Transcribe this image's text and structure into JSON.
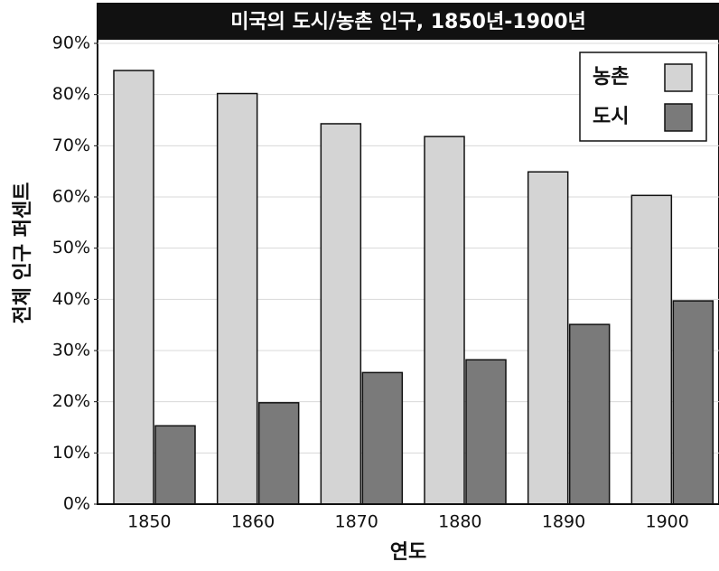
{
  "chart_data": {
    "type": "bar",
    "title": "미국의 도시/농촌 인구, 1850년-1900년",
    "x_label": "연도",
    "y_label": "전체 인구 퍼센트",
    "categories": [
      "1850",
      "1860",
      "1870",
      "1880",
      "1890",
      "1900"
    ],
    "series": [
      {
        "name": "농촌",
        "color": "#d4d4d4",
        "values": [
          84.7,
          80.2,
          74.3,
          71.8,
          64.9,
          60.3
        ]
      },
      {
        "name": "도시",
        "color": "#7a7a7a",
        "values": [
          15.3,
          19.8,
          25.7,
          28.2,
          35.1,
          39.7
        ]
      }
    ],
    "ylim": [
      0,
      90
    ],
    "yticks": [
      {
        "value": 0,
        "label": "0%"
      },
      {
        "value": 10,
        "label": "10%"
      },
      {
        "value": 20,
        "label": "20%"
      },
      {
        "value": 30,
        "label": "30%"
      },
      {
        "value": 40,
        "label": "40%"
      },
      {
        "value": 50,
        "label": "50%"
      },
      {
        "value": 60,
        "label": "60%"
      },
      {
        "value": 70,
        "label": "70%"
      },
      {
        "value": 80,
        "label": "80%"
      },
      {
        "value": 90,
        "label": "90%"
      }
    ],
    "grid": true,
    "legend": "upper right"
  }
}
